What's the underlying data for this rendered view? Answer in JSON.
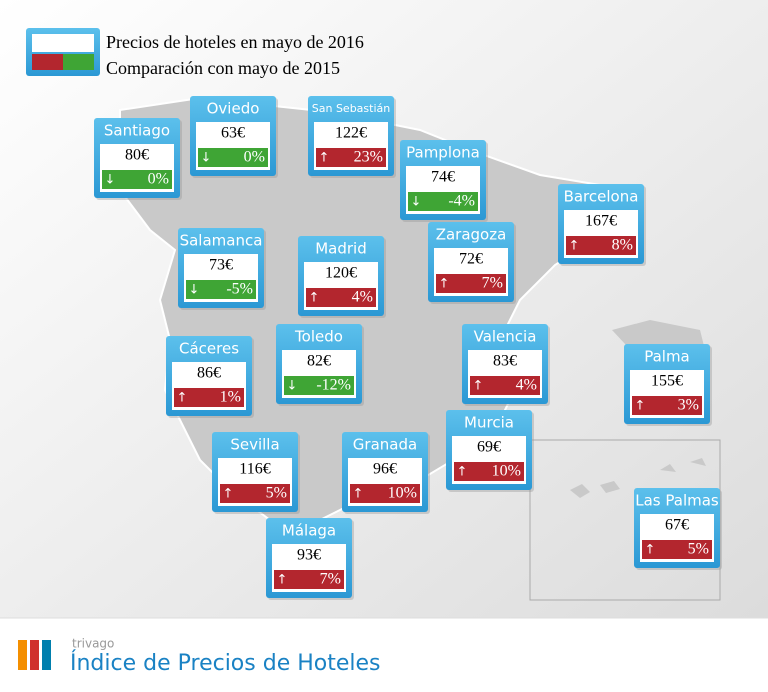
{
  "legend": {
    "price_label": "Precios de hoteles en mayo de 2016",
    "change_label": "Comparación con mayo de 2015"
  },
  "cities": [
    {
      "name": "Santiago",
      "price": "80€",
      "change": "0%"
    },
    {
      "name": "Oviedo",
      "price": "63€",
      "change": "0%"
    },
    {
      "name": "San Sebastián",
      "price": "122€",
      "change": "23%"
    },
    {
      "name": "Pamplona",
      "price": "74€",
      "change": "-4%"
    },
    {
      "name": "Barcelona",
      "price": "167€",
      "change": "8%"
    },
    {
      "name": "Salamanca",
      "price": "73€",
      "change": "-5%"
    },
    {
      "name": "Madrid",
      "price": "120€",
      "change": "4%"
    },
    {
      "name": "Zaragoza",
      "price": "72€",
      "change": "7%"
    },
    {
      "name": "Cáceres",
      "price": "86€",
      "change": "1%"
    },
    {
      "name": "Toledo",
      "price": "82€",
      "change": "-12%"
    },
    {
      "name": "Valencia",
      "price": "83€",
      "change": "4%"
    },
    {
      "name": "Palma",
      "price": "155€",
      "change": "3%"
    },
    {
      "name": "Sevilla",
      "price": "116€",
      "change": "5%"
    },
    {
      "name": "Granada",
      "price": "96€",
      "change": "10%"
    },
    {
      "name": "Murcia",
      "price": "69€",
      "change": "10%"
    },
    {
      "name": "Las Palmas",
      "price": "67€",
      "change": "5%"
    },
    {
      "name": "Málaga",
      "price": "93€",
      "change": "7%"
    }
  ],
  "footer": {
    "brand": "trivago",
    "title": "Índice de Precios de Hoteles"
  }
}
